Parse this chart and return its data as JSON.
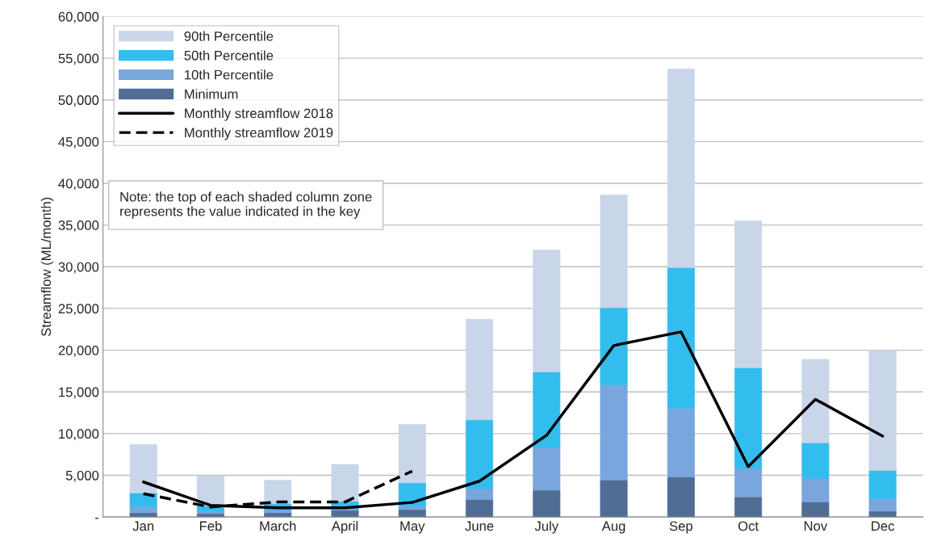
{
  "chart_data": {
    "type": "bar",
    "stacked": true,
    "ylabel": "Streamflow (ML/month)",
    "categories": [
      "Jan",
      "Feb",
      "March",
      "April",
      "May",
      "June",
      "July",
      "Aug",
      "Sep",
      "Oct",
      "Nov",
      "Dec"
    ],
    "series": [
      {
        "name": "Minimum",
        "color": "#4f6d95",
        "values": [
          500,
          400,
          500,
          800,
          900,
          2100,
          3200,
          4450,
          4800,
          2400,
          1800,
          700
        ]
      },
      {
        "name": "10th Percentile",
        "color": "#79a6dc",
        "values": [
          700,
          300,
          350,
          150,
          400,
          1300,
          5100,
          11400,
          8200,
          3400,
          2850,
          1500
        ]
      },
      {
        "name": "50th Percentile",
        "color": "#33bdef",
        "values": [
          1700,
          650,
          750,
          950,
          2800,
          8250,
          9100,
          9250,
          16900,
          12100,
          4250,
          3400
        ]
      },
      {
        "name": "90th Percentile",
        "color": "#c9d6e9",
        "values": [
          5800,
          3550,
          2800,
          4400,
          7000,
          12050,
          14600,
          13500,
          23800,
          17600,
          10000,
          14400
        ]
      },
      {
        "name": "Monthly streamflow 2018",
        "type": "line",
        "line_style": "solid",
        "color": "#000000",
        "values": [
          4200,
          1400,
          1100,
          1100,
          1750,
          4300,
          9800,
          20550,
          22200,
          6050,
          14100,
          9700
        ]
      },
      {
        "name": "Monthly streamflow 2019",
        "type": "line",
        "line_style": "dashed",
        "color": "#000000",
        "values": [
          2800,
          1200,
          1800,
          1800,
          5500,
          null,
          null,
          null,
          null,
          null,
          null,
          null
        ]
      }
    ],
    "ylim": [
      0,
      60000
    ],
    "yticks": [
      {
        "value": 0,
        "label": "-"
      },
      {
        "value": 5000,
        "label": "5,000"
      },
      {
        "value": 10000,
        "label": "10,000"
      },
      {
        "value": 15000,
        "label": "15,000"
      },
      {
        "value": 20000,
        "label": "20,000"
      },
      {
        "value": 25000,
        "label": "25,000"
      },
      {
        "value": 30000,
        "label": "30,000"
      },
      {
        "value": 35000,
        "label": "35,000"
      },
      {
        "value": 40000,
        "label": "40,000"
      },
      {
        "value": 45000,
        "label": "45,000"
      },
      {
        "value": 50000,
        "label": "50,000"
      },
      {
        "value": 55000,
        "label": "55,000"
      },
      {
        "value": 60000,
        "label": "60,000"
      }
    ],
    "grid": "y",
    "legend": "top left",
    "annotations": [
      "Note: the top of each shaded column zone represents the value indicated in the key"
    ]
  }
}
